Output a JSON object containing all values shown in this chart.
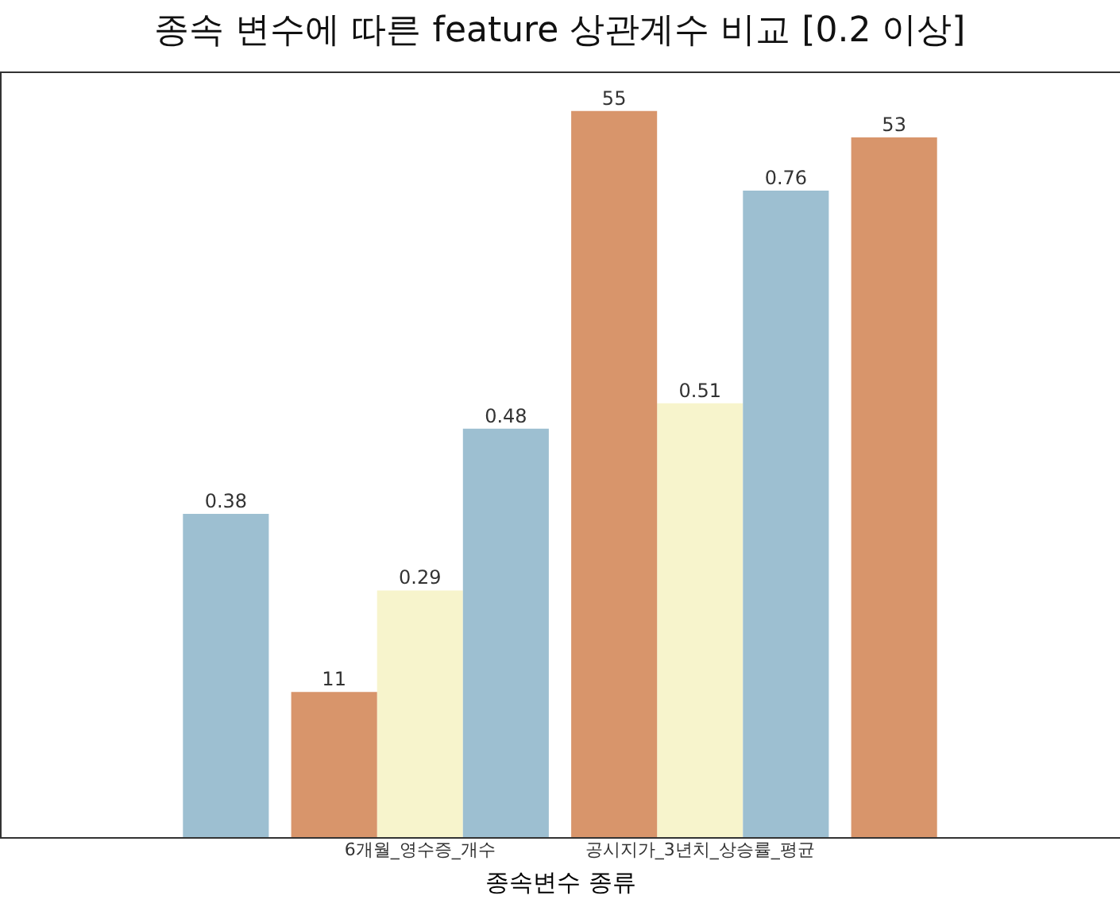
{
  "chart_data": {
    "type": "bar",
    "title": "종속 변수에 따른 feature 상관계수 비교 [0.2 이상]",
    "xlabel": "종속변수 종류",
    "categories": [
      null,
      "6개월_영수증_개수",
      "공시지가_3년치_상승률_평균",
      null
    ],
    "ylim": [
      0,
      0.9
    ],
    "y2lim": [
      0,
      58
    ],
    "tick_labels": "x",
    "legend": false,
    "data_labels": true,
    "series": [
      {
        "color": "#d8956b",
        "axis": "y2",
        "values": [
          null,
          11,
          55,
          53
        ]
      },
      {
        "color": "#f7f4cc",
        "values": [
          null,
          0.29,
          0.51,
          null
        ]
      },
      {
        "color": "#9dbfd1",
        "values": [
          0.38,
          0.48,
          0.76,
          null
        ]
      }
    ]
  }
}
